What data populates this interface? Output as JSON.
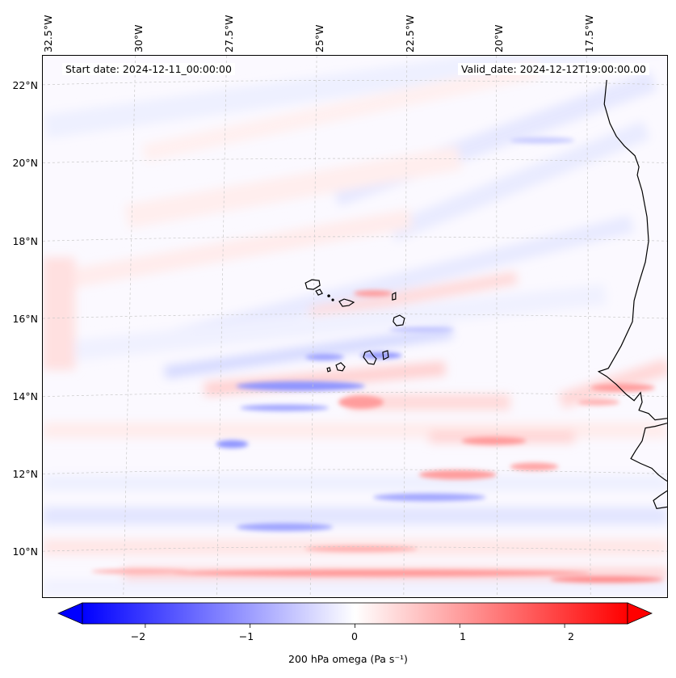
{
  "map": {
    "title_left": "Start date: 2024-12-11_00:00:00",
    "title_right": "Valid_date: 2024-12-12T19:00:00.00",
    "longitude_labels": [
      "32.5°W",
      "30°W",
      "27.5°W",
      "25°W",
      "22.5°W",
      "20°W",
      "17.5°W"
    ],
    "latitude_labels": [
      "22°N",
      "20°N",
      "18°N",
      "16°N",
      "14°N",
      "12°N",
      "10°N"
    ],
    "colors": {
      "negative": "#0000ff",
      "zero": "#ffffff",
      "positive": "#ff0000",
      "coastline": "#000000",
      "gridline": "#bfbfbf"
    }
  },
  "colorbar": {
    "ticks": [
      "−2",
      "−1",
      "0",
      "1",
      "2"
    ],
    "tick_values": [
      -2,
      -1,
      0,
      1,
      2
    ],
    "range": [
      -2.6,
      2.6
    ],
    "label": "200 hPa omega (Pa s⁻¹)"
  }
}
